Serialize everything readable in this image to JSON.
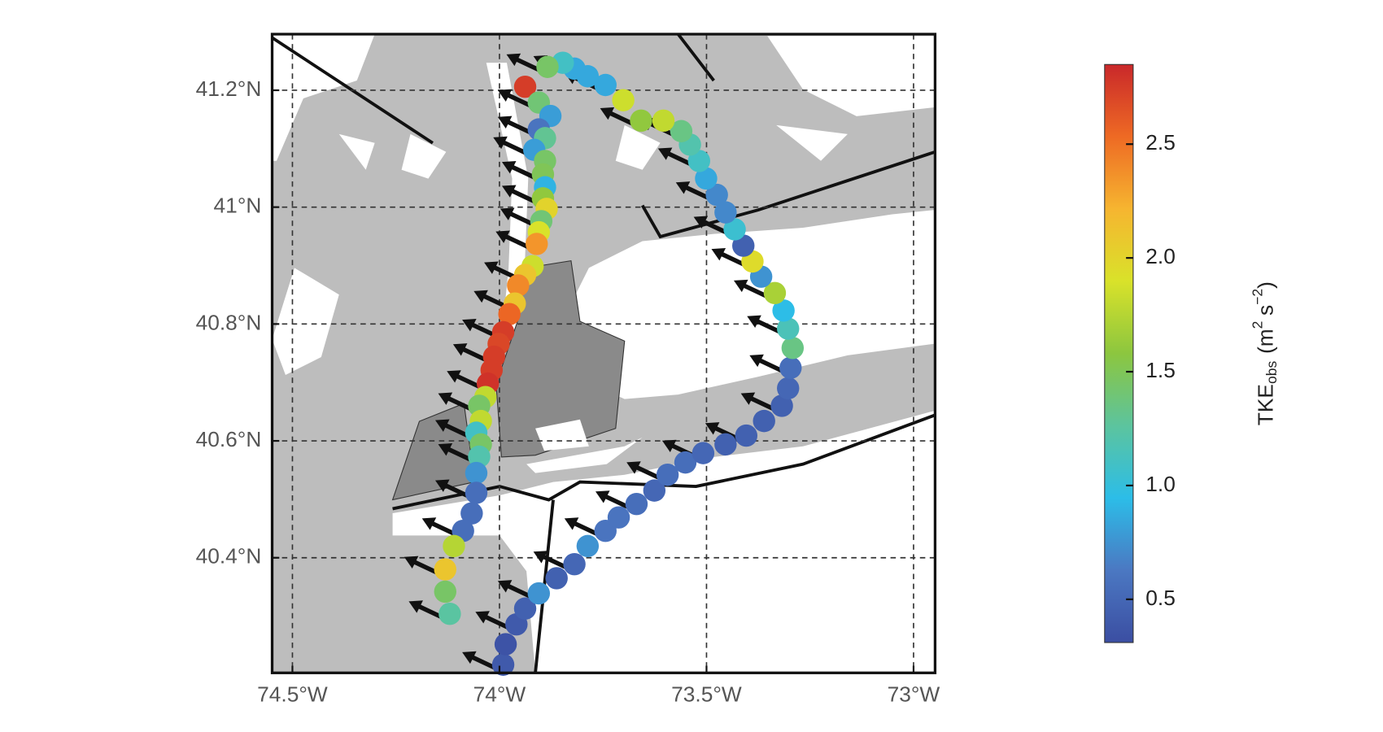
{
  "chart_data": {
    "type": "scatter",
    "xlim": [
      -74.549,
      -72.948
    ],
    "ylim": [
      40.203,
      41.296
    ],
    "xticks": [
      {
        "value": -74.5,
        "label": "74.5°W"
      },
      {
        "value": -74,
        "label": "74°W"
      },
      {
        "value": -73.5,
        "label": "73.5°W"
      },
      {
        "value": -73,
        "label": "73°W"
      }
    ],
    "yticks": [
      {
        "value": 40.4,
        "label": "40.4°N"
      },
      {
        "value": 40.6,
        "label": "40.6°N"
      },
      {
        "value": 40.8,
        "label": "40.8°N"
      },
      {
        "value": 41,
        "label": "41°N"
      },
      {
        "value": 41.2,
        "label": "41.2°N"
      }
    ],
    "grid": true,
    "x": [
      -73.991,
      -73.985,
      -73.959,
      -73.938,
      -73.905,
      -73.862,
      -73.819,
      -73.787,
      -73.744,
      -73.712,
      -73.669,
      -73.626,
      -73.594,
      -73.551,
      -73.508,
      -73.454,
      -73.404,
      -73.361,
      -73.318,
      -73.303,
      -73.297,
      -73.292,
      -73.303,
      -73.314,
      -73.335,
      -73.368,
      -73.389,
      -73.411,
      -73.432,
      -73.454,
      -73.475,
      -73.501,
      -73.518,
      -73.54,
      -73.561,
      -73.604,
      -73.658,
      -73.701,
      -73.744,
      -73.787,
      -73.819,
      -73.847,
      -73.884,
      -73.938,
      -73.905,
      -73.877,
      -73.905,
      -73.89,
      -73.916,
      -73.89,
      -73.895,
      -73.89,
      -73.895,
      -73.886,
      -73.899,
      -73.905,
      -73.91,
      -73.92,
      -73.938,
      -73.955,
      -73.963,
      -73.976,
      -73.991,
      -74.002,
      -74.013,
      -74.019,
      -74.028,
      -74.034,
      -74.049,
      -74.045,
      -74.056,
      -74.045,
      -74.049,
      -74.056,
      -74.056,
      -74.067,
      -74.088,
      -74.11,
      -74.131,
      -74.131,
      -74.12
    ],
    "y": [
      40.217,
      40.252,
      40.286,
      40.313,
      40.339,
      40.365,
      40.389,
      40.42,
      40.446,
      40.469,
      40.492,
      40.515,
      40.542,
      40.563,
      40.579,
      40.594,
      40.609,
      40.634,
      40.66,
      40.69,
      40.725,
      40.759,
      40.792,
      40.823,
      40.853,
      40.881,
      40.907,
      40.934,
      40.962,
      40.991,
      41.021,
      41.049,
      41.079,
      41.107,
      41.13,
      41.148,
      41.148,
      41.183,
      41.209,
      41.224,
      41.237,
      41.247,
      41.24,
      41.206,
      41.179,
      41.156,
      41.133,
      41.118,
      41.098,
      41.079,
      41.056,
      41.034,
      41.015,
      40.997,
      40.976,
      40.957,
      40.937,
      40.899,
      40.884,
      40.866,
      40.835,
      40.817,
      40.786,
      40.766,
      40.744,
      40.721,
      40.698,
      40.675,
      40.66,
      40.634,
      40.614,
      40.594,
      40.573,
      40.545,
      40.511,
      40.476,
      40.446,
      40.42,
      40.38,
      40.342,
      40.304
    ],
    "values": [
      0.4,
      0.35,
      0.4,
      0.45,
      0.75,
      0.45,
      0.5,
      0.75,
      0.6,
      0.6,
      0.55,
      0.5,
      0.55,
      0.55,
      0.5,
      0.45,
      0.45,
      0.45,
      0.45,
      0.5,
      0.55,
      1.35,
      1.15,
      0.95,
      1.7,
      0.75,
      1.95,
      0.45,
      1.05,
      0.7,
      0.7,
      0.85,
      1.1,
      1.2,
      1.35,
      1.8,
      1.6,
      1.85,
      0.85,
      0.85,
      0.85,
      1.1,
      1.45,
      2.75,
      1.4,
      0.8,
      0.6,
      1.3,
      0.8,
      1.45,
      1.5,
      0.9,
      1.6,
      2.0,
      1.4,
      1.9,
      2.35,
      1.85,
      2.1,
      2.4,
      2.1,
      2.55,
      2.75,
      2.7,
      2.75,
      2.75,
      2.8,
      1.8,
      1.45,
      1.8,
      1.1,
      1.45,
      1.2,
      0.75,
      0.55,
      0.55,
      0.55,
      1.75,
      2.1,
      1.45,
      1.25
    ],
    "colorbar": {
      "clim": [
        0.31,
        2.85
      ],
      "ticks": [
        0.5,
        {
          "value": 1,
          "label": "1.0"
        },
        1.5,
        {
          "value": 2,
          "label": "2.0"
        },
        2.5
      ],
      "colormap": [
        "#3b4ea2",
        "#4b78c2",
        "#2cbde8",
        "#5cc49e",
        "#8cc63f",
        "#d9e22a",
        "#f6b530",
        "#ee6a24",
        "#c9282a"
      ],
      "label": {
        "main": "TKE",
        "sub": "obs",
        "open": "(m",
        "exp1": "2",
        "mid": "s",
        "exp2": "−2",
        "close": ")"
      }
    }
  }
}
